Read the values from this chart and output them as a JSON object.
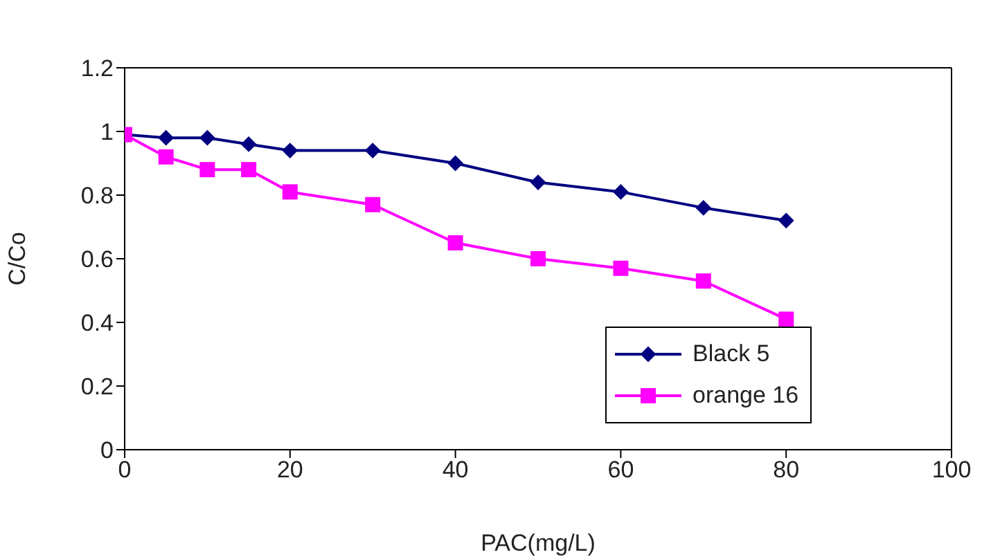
{
  "chart_data": {
    "type": "line",
    "xlabel": "PAC(mg/L)",
    "ylabel": "C/Co",
    "x": [
      0,
      5,
      10,
      15,
      20,
      30,
      40,
      50,
      60,
      70,
      80
    ],
    "series": [
      {
        "name": "Black 5",
        "color": "#000080",
        "marker": "diamond",
        "values": [
          0.99,
          0.98,
          0.98,
          0.96,
          0.94,
          0.94,
          0.9,
          0.84,
          0.81,
          0.76,
          0.72
        ]
      },
      {
        "name": "orange 16",
        "color": "#ff00ff",
        "marker": "square",
        "values": [
          0.99,
          0.92,
          0.88,
          0.88,
          0.81,
          0.77,
          0.65,
          0.6,
          0.57,
          0.53,
          0.41
        ]
      }
    ],
    "xlim": [
      0,
      100
    ],
    "xticks": [
      0,
      20,
      40,
      60,
      80,
      100
    ],
    "ylim": [
      0,
      1.2
    ],
    "yticks": [
      0,
      0.2,
      0.4,
      0.6,
      0.8,
      1,
      1.2
    ],
    "grid": false,
    "legend": "bottom right",
    "line_style": "solid"
  }
}
